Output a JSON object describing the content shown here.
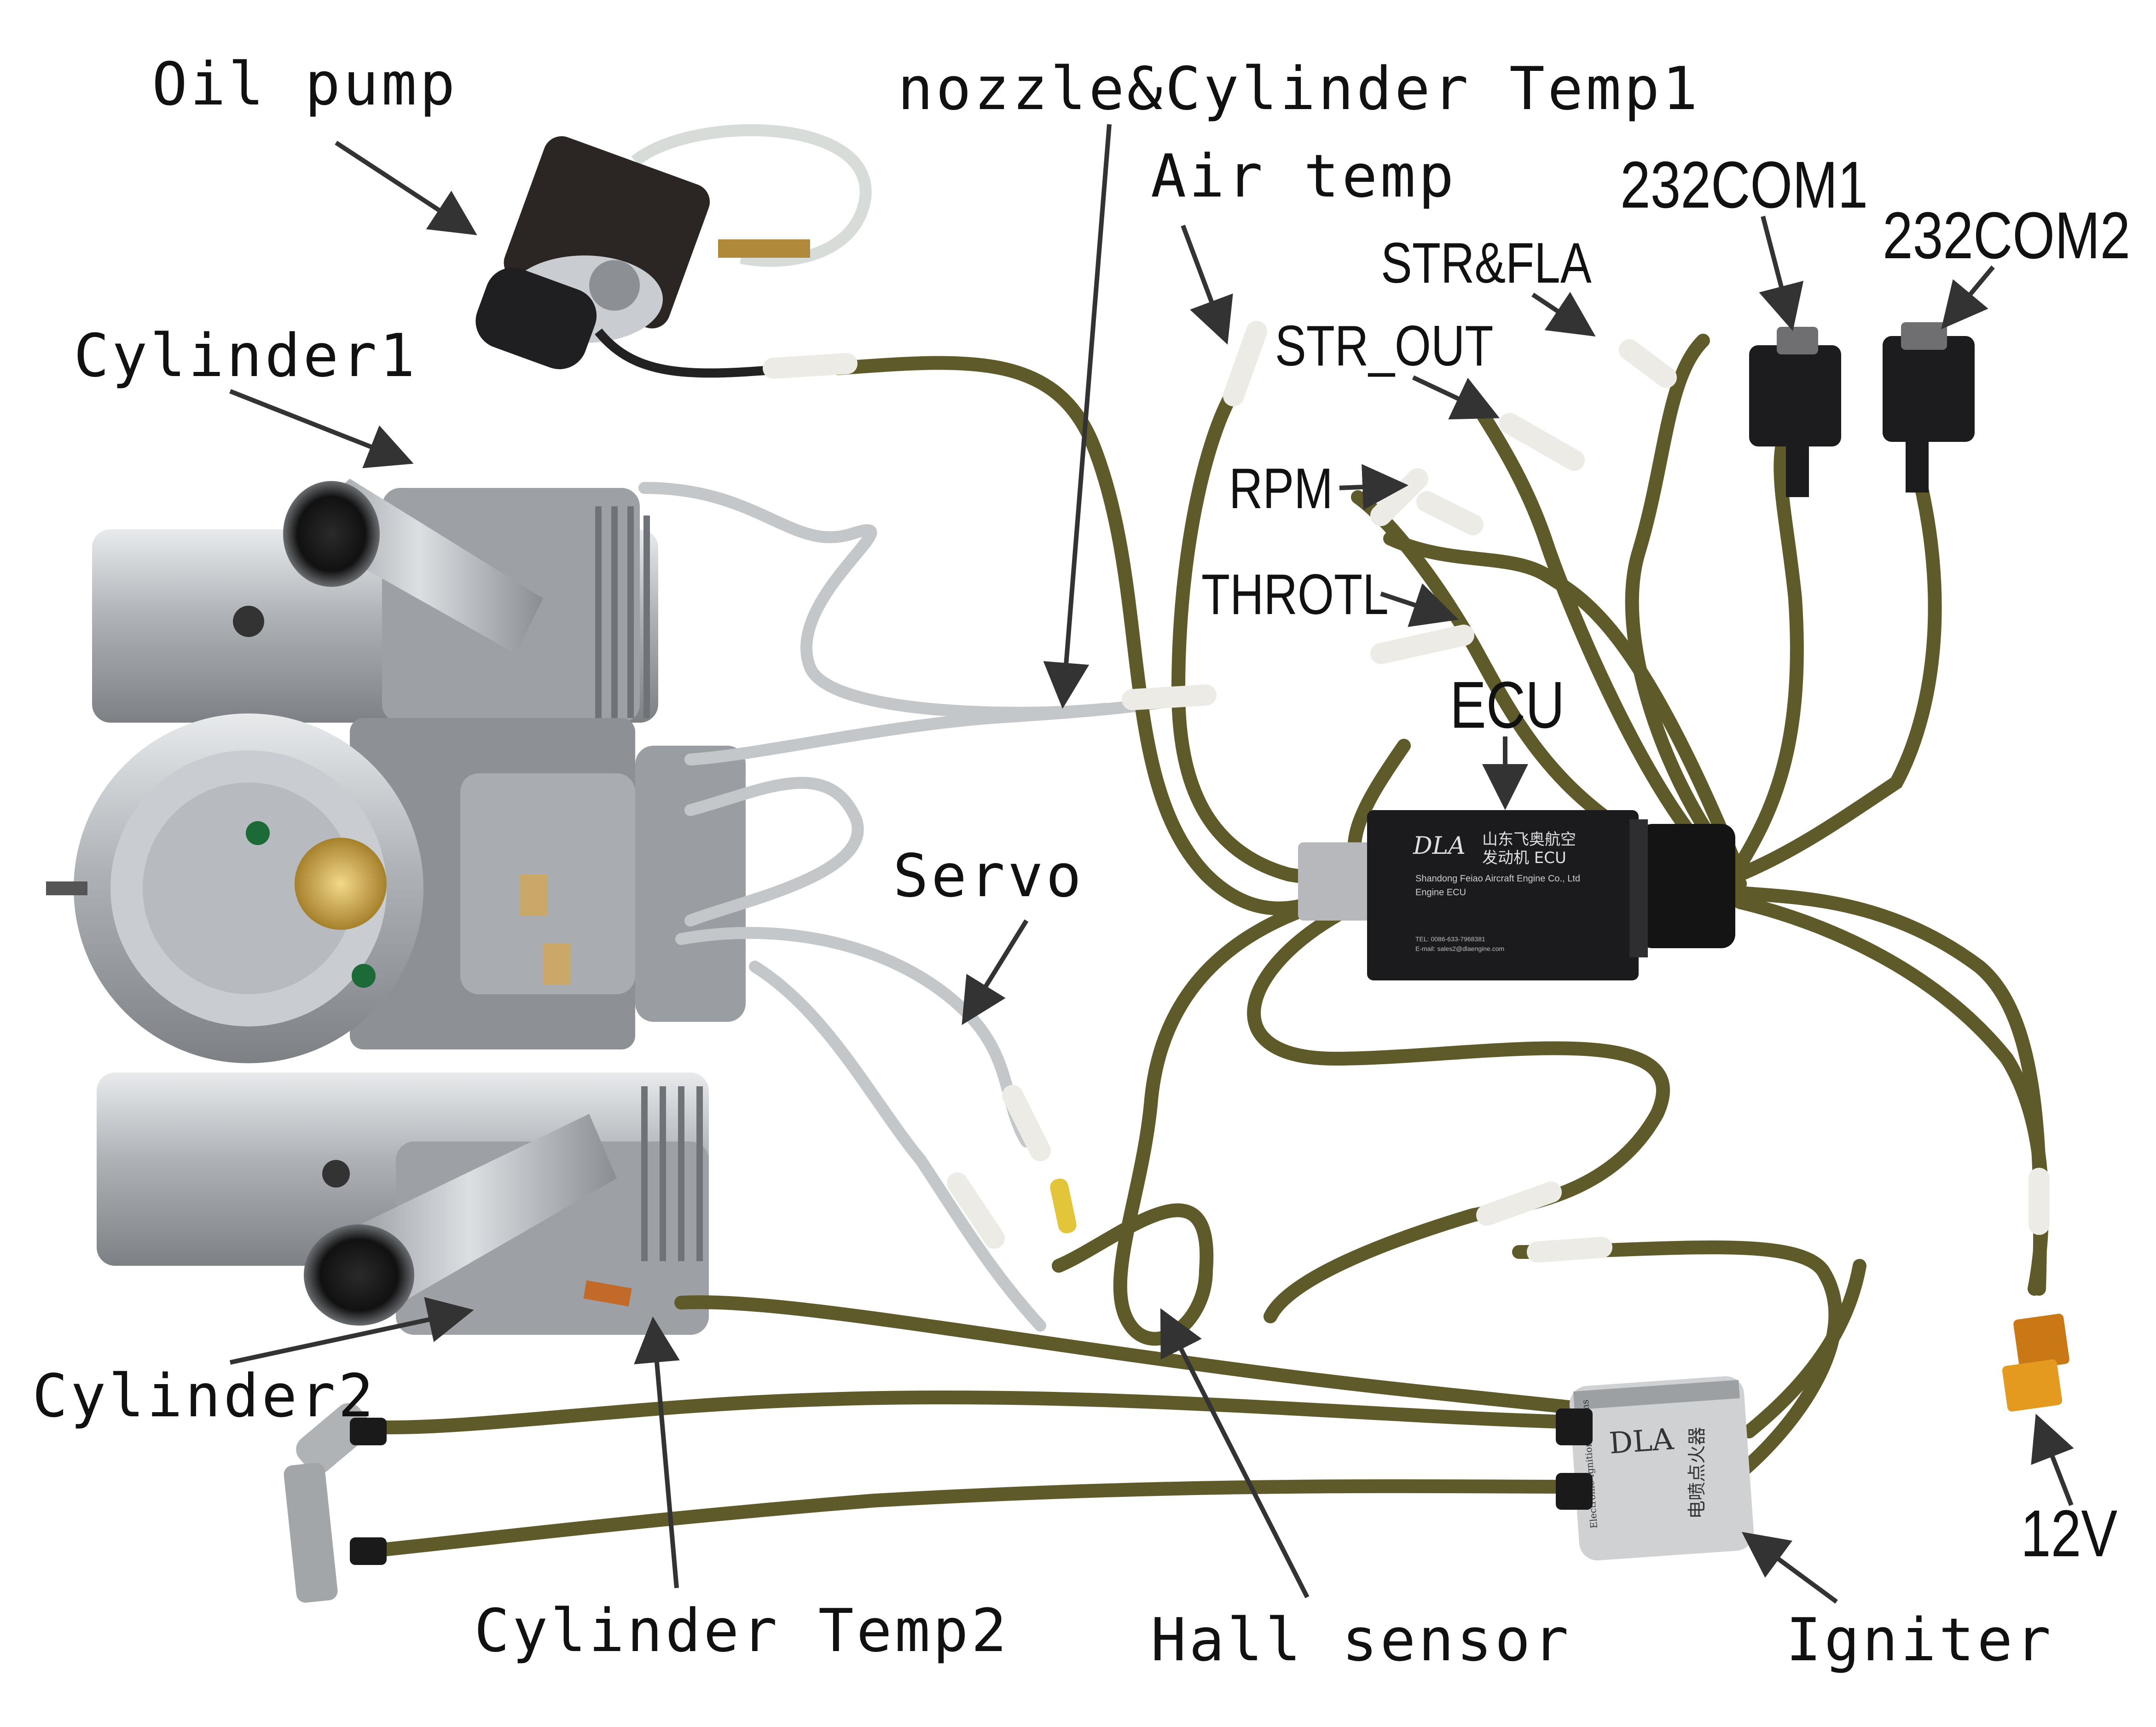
{
  "labels": {
    "oil_pump": "Oil pump",
    "nozzle_cyl_temp1": "nozzle&Cylinder Temp1",
    "air_temp": "Air temp",
    "com1": "232COM1",
    "com2": "232COM2",
    "str_fla": "STR&FLA",
    "str_out": "STR_OUT",
    "rpm": "RPM",
    "throtl": "THROTL",
    "ecu": "ECU",
    "cylinder1": "Cylinder1",
    "servo": "Servo",
    "cylinder2": "Cylinder2",
    "cyl_temp2": "Cylinder Temp2",
    "hall_sensor": "Hall sensor",
    "igniter": "Igniter",
    "v12": "12V"
  },
  "ecu_box": {
    "brand": "DLA",
    "cn_name_1": "山东飞奥航空",
    "cn_name_2": "发动机 ECU",
    "company": "Shandong Feiao Aircraft Engine Co., Ltd",
    "model": "Engine ECU",
    "tel": "TEL:    0086-633-7968381",
    "email": "E-mail:   sales2@dlaengine.com"
  },
  "igniter_box": {
    "brand": "DLA",
    "line1": "Electronic Ignition Systems",
    "line2": "电喷点火器"
  },
  "colors": {
    "cable": "#5f5a2a",
    "cable_dark": "#3f3b18",
    "aluminum": "#b9bcc0",
    "ecu_body": "#1b1b1d",
    "braid": "#c9cbcc",
    "arrow": "#333333"
  }
}
